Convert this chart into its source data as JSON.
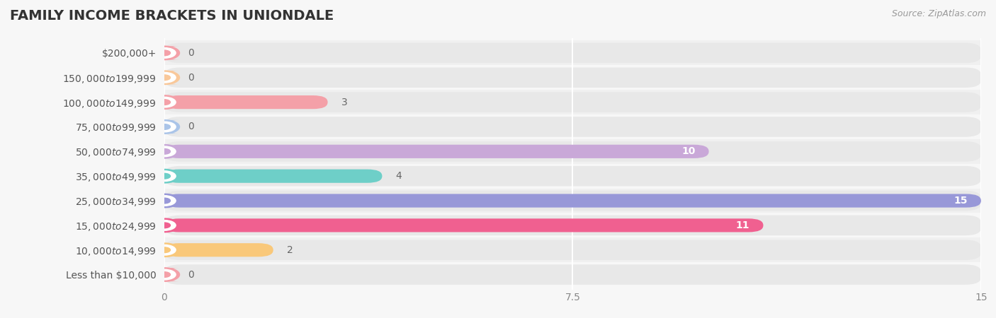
{
  "title": "FAMILY INCOME BRACKETS IN UNIONDALE",
  "source": "Source: ZipAtlas.com",
  "categories": [
    "Less than $10,000",
    "$10,000 to $14,999",
    "$15,000 to $24,999",
    "$25,000 to $34,999",
    "$35,000 to $49,999",
    "$50,000 to $74,999",
    "$75,000 to $99,999",
    "$100,000 to $149,999",
    "$150,000 to $199,999",
    "$200,000+"
  ],
  "values": [
    0,
    0,
    3,
    0,
    10,
    4,
    15,
    11,
    2,
    0
  ],
  "bar_colors": [
    "#f4a0a8",
    "#f9c89a",
    "#f4a0a8",
    "#aac4e8",
    "#c9a8d8",
    "#6ecfc8",
    "#9898d8",
    "#f06090",
    "#f9c87a",
    "#f4a0a8"
  ],
  "label_colors": [
    "#666666",
    "#666666",
    "#666666",
    "#666666",
    "#ffffff",
    "#666666",
    "#ffffff",
    "#ffffff",
    "#666666",
    "#666666"
  ],
  "xlim": [
    0,
    15
  ],
  "xticks": [
    0,
    7.5,
    15
  ],
  "background_color": "#f7f7f7",
  "bar_background_color": "#e8e8e8",
  "row_bg_colors": [
    "#f0f0f0",
    "#f7f7f7"
  ],
  "title_fontsize": 14,
  "label_fontsize": 10,
  "tick_fontsize": 10,
  "source_fontsize": 9
}
